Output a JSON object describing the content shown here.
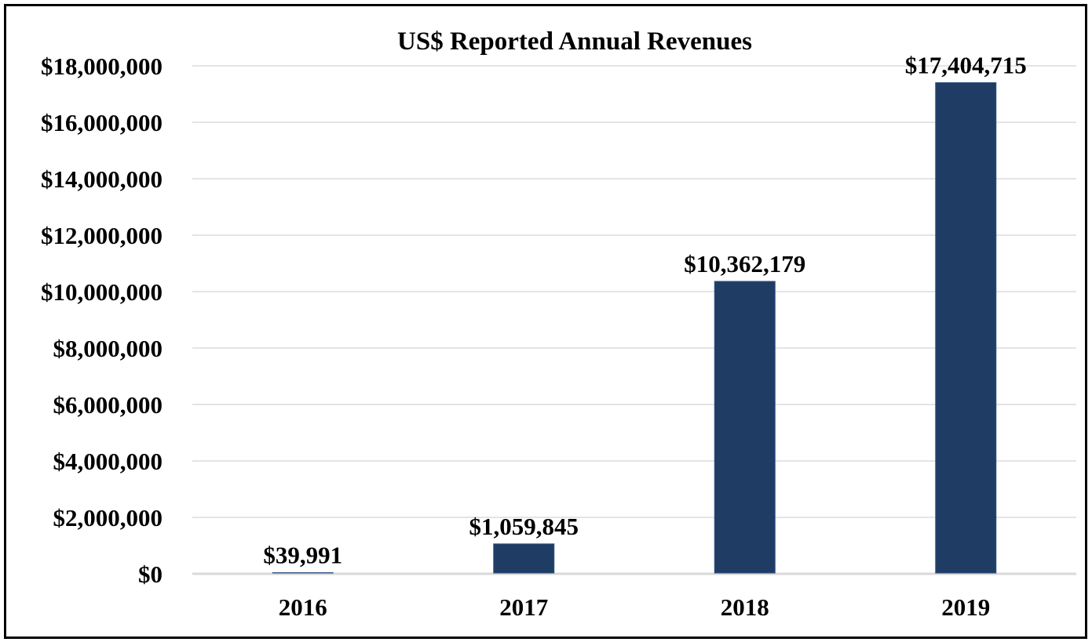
{
  "chart_data": {
    "type": "bar",
    "title": "US$ Reported Annual Revenues",
    "xlabel": "",
    "ylabel": "",
    "categories": [
      "2016",
      "2017",
      "2018",
      "2019"
    ],
    "values": [
      39991,
      1059845,
      10362179,
      17404715
    ],
    "data_labels": [
      "$39,991",
      "$1,059,845",
      "$10,362,179",
      "$17,404,715"
    ],
    "ylim": [
      0,
      18000000
    ],
    "yticks": [
      0,
      2000000,
      4000000,
      6000000,
      8000000,
      10000000,
      12000000,
      14000000,
      16000000,
      18000000
    ],
    "ytick_labels": [
      "$0",
      "$2,000,000",
      "$4,000,000",
      "$6,000,000",
      "$8,000,000",
      "$10,000,000",
      "$12,000,000",
      "$14,000,000",
      "$16,000,000",
      "$18,000,000"
    ],
    "grid": true,
    "legend": "none",
    "bar_color": "#1f3c64",
    "grid_color": "#c8c8c8",
    "axis_color": "#d9d9d9"
  }
}
